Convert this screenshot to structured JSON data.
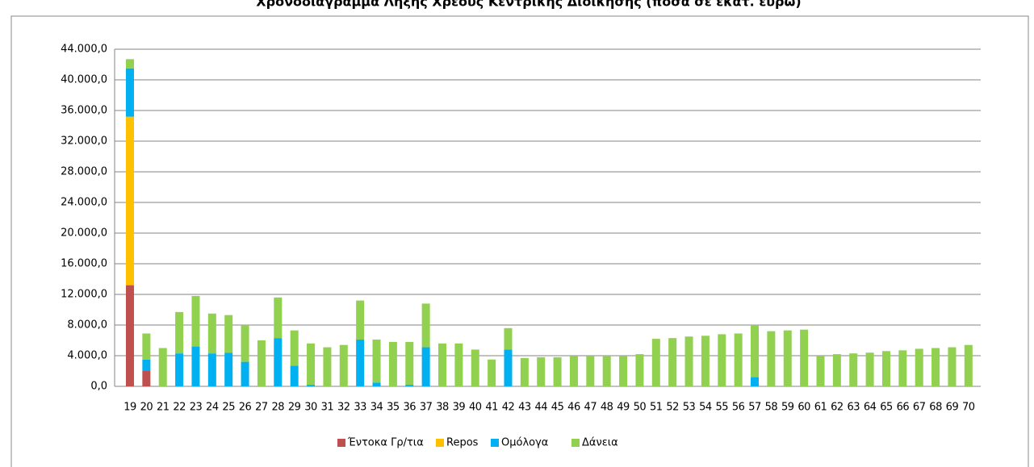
{
  "chart_data": {
    "type": "stacked_bar",
    "title": "Χρονοδιάγραμμα Λήξης Χρέους Κεντρικής Διοίκησης (ποσά σε εκατ. ευρώ)",
    "categories": [
      "19",
      "20",
      "21",
      "22",
      "23",
      "24",
      "25",
      "26",
      "27",
      "28",
      "29",
      "30",
      "31",
      "32",
      "33",
      "34",
      "35",
      "36",
      "37",
      "38",
      "39",
      "40",
      "41",
      "42",
      "43",
      "44",
      "45",
      "46",
      "47",
      "48",
      "49",
      "50",
      "51",
      "52",
      "53",
      "54",
      "55",
      "56",
      "57",
      "58",
      "59",
      "60",
      "61",
      "62",
      "63",
      "64",
      "65",
      "66",
      "67",
      "68",
      "69",
      "70"
    ],
    "series": [
      {
        "name": "Έντοκα Γρ/τια",
        "color": "#c0504d",
        "values": [
          13200,
          2000,
          0,
          0,
          0,
          0,
          0,
          0,
          0,
          0,
          0,
          0,
          0,
          0,
          0,
          0,
          0,
          0,
          0,
          0,
          0,
          0,
          0,
          0,
          0,
          0,
          0,
          0,
          0,
          0,
          0,
          0,
          0,
          0,
          0,
          0,
          0,
          0,
          0,
          0,
          0,
          0,
          0,
          0,
          0,
          0,
          0,
          0,
          0,
          0,
          0,
          0
        ]
      },
      {
        "name": "Repos",
        "color": "#ffc000",
        "values": [
          22000,
          0,
          0,
          0,
          0,
          0,
          0,
          0,
          0,
          0,
          0,
          0,
          0,
          0,
          0,
          0,
          0,
          0,
          0,
          0,
          0,
          0,
          0,
          0,
          0,
          0,
          0,
          0,
          0,
          0,
          0,
          0,
          0,
          0,
          0,
          0,
          0,
          0,
          0,
          0,
          0,
          0,
          0,
          0,
          0,
          0,
          0,
          0,
          0,
          0,
          0,
          0
        ]
      },
      {
        "name": "Ομόλογα",
        "color": "#00b0f0",
        "values": [
          6300,
          1500,
          0,
          4300,
          5200,
          4300,
          4400,
          3200,
          0,
          6300,
          2700,
          200,
          0,
          0,
          6100,
          500,
          0,
          200,
          5100,
          0,
          0,
          0,
          0,
          4800,
          0,
          0,
          0,
          0,
          0,
          0,
          0,
          0,
          0,
          0,
          0,
          0,
          0,
          0,
          1200,
          0,
          0,
          0,
          0,
          0,
          0,
          0,
          0,
          0,
          0,
          0,
          0,
          0
        ]
      },
      {
        "name": "Δάνεια",
        "color": "#92d050",
        "values": [
          1200,
          3400,
          5000,
          5400,
          6600,
          5200,
          4900,
          4800,
          6000,
          5300,
          4600,
          5400,
          5100,
          5400,
          5100,
          5600,
          5800,
          5600,
          5700,
          5600,
          5600,
          4800,
          3500,
          2800,
          3700,
          3800,
          3800,
          4000,
          4000,
          4000,
          4000,
          4200,
          6200,
          6300,
          6500,
          6600,
          6800,
          6900,
          6800,
          7200,
          7300,
          7400,
          4000,
          4200,
          4300,
          4400,
          4600,
          4700,
          4900,
          5000,
          5100,
          5400
        ]
      }
    ],
    "ylim": [
      0,
      44000
    ],
    "yticks": [
      {
        "value": 0,
        "label": "0,0"
      },
      {
        "value": 4000,
        "label": "4.000,0"
      },
      {
        "value": 8000,
        "label": "8.000,0"
      },
      {
        "value": 12000,
        "label": "12.000,0"
      },
      {
        "value": 16000,
        "label": "16.000,0"
      },
      {
        "value": 20000,
        "label": "20.000,0"
      },
      {
        "value": 24000,
        "label": "24.000,0"
      },
      {
        "value": 28000,
        "label": "28.000,0"
      },
      {
        "value": 32000,
        "label": "32.000,0"
      },
      {
        "value": 36000,
        "label": "36.000,0"
      },
      {
        "value": 40000,
        "label": "40.000,0"
      },
      {
        "value": 44000,
        "label": "44.000,0"
      }
    ],
    "grid": true,
    "legend": "bottom"
  }
}
